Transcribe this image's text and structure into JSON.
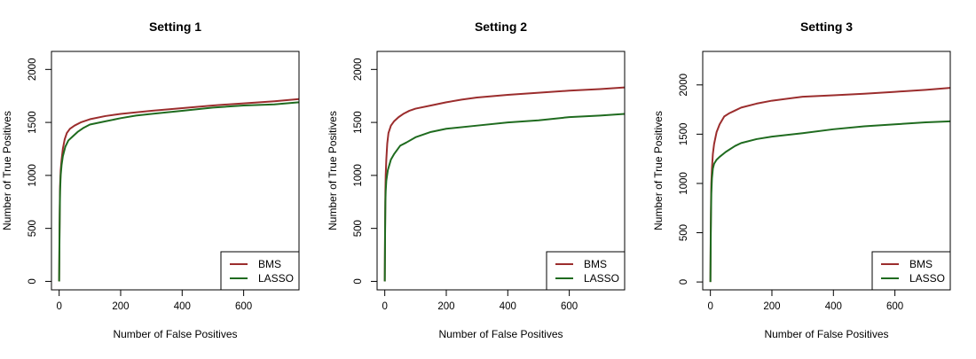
{
  "chart_data": [
    {
      "type": "line",
      "title": "Setting 1",
      "xlabel": "Number of False Positives",
      "ylabel": "Number of True Positives",
      "xlim": [
        -25,
        780
      ],
      "ylim": [
        -80,
        2170
      ],
      "xticks": [
        0,
        200,
        400,
        600
      ],
      "yticks": [
        0,
        500,
        1000,
        1500,
        2000
      ],
      "legend": "bottom-right",
      "grid": false,
      "series": [
        {
          "name": "BMS",
          "color": "#9b2d2d",
          "points": [
            [
              0,
              0
            ],
            [
              1,
              400
            ],
            [
              2,
              700
            ],
            [
              3,
              900
            ],
            [
              5,
              1050
            ],
            [
              8,
              1150
            ],
            [
              12,
              1250
            ],
            [
              18,
              1340
            ],
            [
              25,
              1400
            ],
            [
              35,
              1440
            ],
            [
              50,
              1470
            ],
            [
              70,
              1500
            ],
            [
              100,
              1530
            ],
            [
              150,
              1560
            ],
            [
              200,
              1580
            ],
            [
              300,
              1610
            ],
            [
              400,
              1635
            ],
            [
              500,
              1660
            ],
            [
              600,
              1680
            ],
            [
              700,
              1700
            ],
            [
              780,
              1720
            ]
          ]
        },
        {
          "name": "LASSO",
          "color": "#1f6b1f",
          "points": [
            [
              0,
              0
            ],
            [
              1,
              350
            ],
            [
              2,
              650
            ],
            [
              3,
              850
            ],
            [
              5,
              1000
            ],
            [
              8,
              1100
            ],
            [
              12,
              1180
            ],
            [
              20,
              1270
            ],
            [
              30,
              1330
            ],
            [
              45,
              1370
            ],
            [
              60,
              1410
            ],
            [
              80,
              1450
            ],
            [
              100,
              1480
            ],
            [
              150,
              1510
            ],
            [
              200,
              1540
            ],
            [
              250,
              1565
            ],
            [
              300,
              1580
            ],
            [
              400,
              1610
            ],
            [
              500,
              1640
            ],
            [
              600,
              1660
            ],
            [
              700,
              1670
            ],
            [
              780,
              1690
            ]
          ]
        }
      ]
    },
    {
      "type": "line",
      "title": "Setting 2",
      "xlabel": "Number of False Positives",
      "ylabel": "Number of True Positives",
      "xlim": [
        -25,
        780
      ],
      "ylim": [
        -80,
        2170
      ],
      "xticks": [
        0,
        200,
        400,
        600
      ],
      "yticks": [
        0,
        500,
        1000,
        1500,
        2000
      ],
      "legend": "bottom-right",
      "grid": false,
      "series": [
        {
          "name": "BMS",
          "color": "#9b2d2d",
          "points": [
            [
              0,
              0
            ],
            [
              1,
              500
            ],
            [
              2,
              850
            ],
            [
              3,
              1000
            ],
            [
              5,
              1150
            ],
            [
              8,
              1300
            ],
            [
              12,
              1400
            ],
            [
              20,
              1470
            ],
            [
              30,
              1510
            ],
            [
              45,
              1550
            ],
            [
              60,
              1580
            ],
            [
              80,
              1610
            ],
            [
              100,
              1630
            ],
            [
              150,
              1660
            ],
            [
              200,
              1690
            ],
            [
              250,
              1715
            ],
            [
              300,
              1735
            ],
            [
              400,
              1760
            ],
            [
              500,
              1780
            ],
            [
              600,
              1800
            ],
            [
              700,
              1815
            ],
            [
              780,
              1830
            ]
          ]
        },
        {
          "name": "LASSO",
          "color": "#1f6b1f",
          "points": [
            [
              0,
              0
            ],
            [
              1,
              450
            ],
            [
              2,
              750
            ],
            [
              3,
              850
            ],
            [
              5,
              950
            ],
            [
              10,
              1050
            ],
            [
              20,
              1150
            ],
            [
              30,
              1200
            ],
            [
              50,
              1280
            ],
            [
              70,
              1310
            ],
            [
              100,
              1360
            ],
            [
              150,
              1410
            ],
            [
              200,
              1440
            ],
            [
              300,
              1470
            ],
            [
              400,
              1500
            ],
            [
              500,
              1520
            ],
            [
              600,
              1550
            ],
            [
              700,
              1565
            ],
            [
              780,
              1580
            ]
          ]
        }
      ]
    },
    {
      "type": "line",
      "title": "Setting 3",
      "xlabel": "Number of False Positives",
      "ylabel": "Number of True Positives",
      "xlim": [
        -25,
        780
      ],
      "ylim": [
        -80,
        2340
      ],
      "xticks": [
        0,
        200,
        400,
        600
      ],
      "yticks": [
        0,
        500,
        1000,
        1500,
        2000
      ],
      "legend": "bottom-right",
      "grid": false,
      "series": [
        {
          "name": "BMS",
          "color": "#9b2d2d",
          "points": [
            [
              0,
              0
            ],
            [
              1,
              500
            ],
            [
              2,
              800
            ],
            [
              3,
              1000
            ],
            [
              5,
              1150
            ],
            [
              8,
              1300
            ],
            [
              12,
              1400
            ],
            [
              20,
              1520
            ],
            [
              30,
              1600
            ],
            [
              45,
              1680
            ],
            [
              60,
              1710
            ],
            [
              80,
              1740
            ],
            [
              100,
              1770
            ],
            [
              150,
              1810
            ],
            [
              200,
              1840
            ],
            [
              300,
              1880
            ],
            [
              400,
              1895
            ],
            [
              500,
              1910
            ],
            [
              600,
              1930
            ],
            [
              700,
              1950
            ],
            [
              780,
              1970
            ]
          ]
        },
        {
          "name": "LASSO",
          "color": "#1f6b1f",
          "points": [
            [
              0,
              0
            ],
            [
              1,
              400
            ],
            [
              2,
              700
            ],
            [
              3,
              900
            ],
            [
              5,
              1050
            ],
            [
              8,
              1150
            ],
            [
              12,
              1200
            ],
            [
              20,
              1240
            ],
            [
              30,
              1270
            ],
            [
              50,
              1320
            ],
            [
              80,
              1380
            ],
            [
              100,
              1410
            ],
            [
              150,
              1450
            ],
            [
              200,
              1475
            ],
            [
              300,
              1510
            ],
            [
              400,
              1550
            ],
            [
              500,
              1580
            ],
            [
              600,
              1600
            ],
            [
              700,
              1620
            ],
            [
              780,
              1630
            ]
          ]
        }
      ]
    }
  ]
}
